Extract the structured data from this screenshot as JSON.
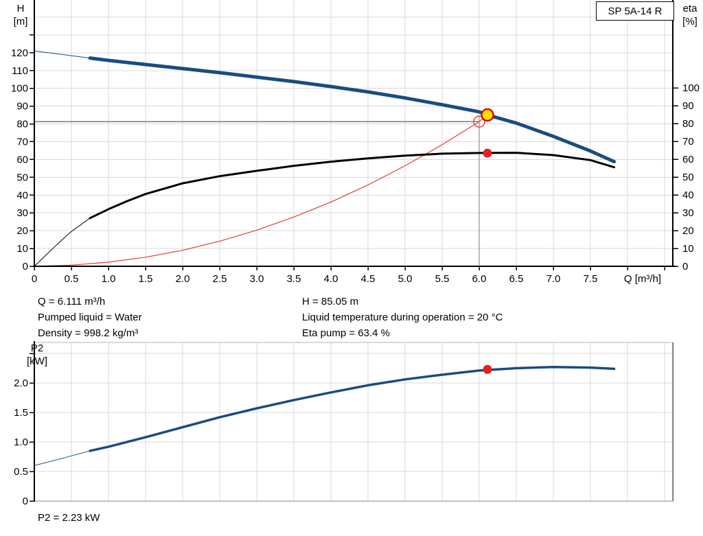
{
  "pump_name": "SP 5A-14 R",
  "info_panel": {
    "left": [
      "Q = 6.111 m³/h",
      "Pumped liquid = Water",
      "Density = 998.2 kg/m³"
    ],
    "right": [
      "H = 85.05 m",
      "Liquid temperature during operation = 20 °C",
      "Eta pump = 63.4 %"
    ]
  },
  "colors": {
    "head_curve": "#1a4c80",
    "eta_curve": "#000000",
    "system_curve": "#e23b33",
    "marker_yellow": "#ffdf00",
    "marker_red": "#ec1c24",
    "grid": "#d9d9d9",
    "crosshair": "#787878",
    "axis": "#000000",
    "border_gray": "#b0b0b0",
    "border_right_gray": "#555555"
  },
  "chart_data": [
    {
      "type": "line",
      "title": "SP 5A-14 R",
      "xlabel": "Q [m³/h]",
      "ylabel_left": [
        "H",
        "[m]"
      ],
      "ylabel_right": [
        "eta",
        "[%]"
      ],
      "xlim": [
        0,
        8.6
      ],
      "x_ticks": [
        0,
        0.5,
        1,
        1.5,
        2,
        2.5,
        3,
        3.5,
        4,
        4.5,
        5,
        5.5,
        6,
        6.5,
        7,
        7.5
      ],
      "x_tick_labels": [
        "0",
        "0.5",
        "1.0",
        "1.5",
        "2.0",
        "2.5",
        "3.0",
        "3.5",
        "4.0",
        "4.5",
        "5.0",
        "5.5",
        "6.0",
        "6.5",
        "7.0",
        "7.5"
      ],
      "ylim_left": [
        0,
        143
      ],
      "y_ticks_left": [
        0,
        10,
        20,
        30,
        40,
        50,
        60,
        70,
        80,
        90,
        100,
        110,
        120
      ],
      "ylim_right": [
        0,
        100
      ],
      "y_ticks_right": [
        0,
        10,
        20,
        30,
        40,
        50,
        60,
        70,
        80,
        90,
        100
      ],
      "grid": true,
      "series": [
        {
          "name": "head-curve",
          "axis": "left",
          "color_key": "head_curve",
          "width": 5,
          "thin_until": 0.75,
          "points": [
            [
              0,
              121
            ],
            [
              0.4,
              118.9
            ],
            [
              0.75,
              117
            ],
            [
              1,
              115.7
            ],
            [
              1.5,
              113.4
            ],
            [
              2,
              111.1
            ],
            [
              2.5,
              108.8
            ],
            [
              3,
              106.3
            ],
            [
              3.5,
              103.8
            ],
            [
              4,
              101
            ],
            [
              4.5,
              98
            ],
            [
              5,
              94.6
            ],
            [
              5.5,
              90.8
            ],
            [
              6,
              86.8
            ],
            [
              6.11,
              85.05
            ],
            [
              6.5,
              80.5
            ],
            [
              7,
              73
            ],
            [
              7.5,
              64.8
            ],
            [
              7.82,
              58.8
            ]
          ]
        },
        {
          "name": "eta-curve",
          "axis": "right",
          "color_key": "eta_curve",
          "width": 3,
          "thin_until": 0.75,
          "points": [
            [
              0,
              0
            ],
            [
              0.15,
              6
            ],
            [
              0.3,
              12
            ],
            [
              0.5,
              19.5
            ],
            [
              0.75,
              27
            ],
            [
              1,
              32
            ],
            [
              1.25,
              36.5
            ],
            [
              1.5,
              40.5
            ],
            [
              2,
              46.5
            ],
            [
              2.5,
              50.5
            ],
            [
              3,
              53.5
            ],
            [
              3.5,
              56.3
            ],
            [
              4,
              58.6
            ],
            [
              4.5,
              60.5
            ],
            [
              5,
              62
            ],
            [
              5.5,
              63.1
            ],
            [
              6,
              63.5
            ],
            [
              6.5,
              63.6
            ],
            [
              7,
              62.3
            ],
            [
              7.5,
              59.5
            ],
            [
              7.82,
              55.5
            ]
          ]
        },
        {
          "name": "system-curve",
          "axis": "left",
          "color_key": "system_curve",
          "width": 1.2,
          "thin_until": null,
          "points": [
            [
              0,
              0
            ],
            [
              0.5,
              0.6
            ],
            [
              1,
              2.3
            ],
            [
              1.5,
              5.1
            ],
            [
              2,
              9
            ],
            [
              2.5,
              14.1
            ],
            [
              3,
              20.3
            ],
            [
              3.5,
              27.7
            ],
            [
              4,
              36.1
            ],
            [
              4.5,
              45.7
            ],
            [
              5,
              56.5
            ],
            [
              5.5,
              68.3
            ],
            [
              6,
              81.3
            ],
            [
              6.11,
              85.1
            ]
          ]
        }
      ],
      "markers": [
        {
          "name": "duty-point-head",
          "style": "yellow-ring",
          "axis": "left",
          "q": 6.111,
          "value": 85.05
        },
        {
          "name": "requested-duty",
          "style": "open-ring",
          "axis": "left",
          "q": 6.0,
          "value": 81.3
        },
        {
          "name": "duty-point-eta",
          "style": "red-dot",
          "axis": "right",
          "q": 6.111,
          "value": 63.4
        }
      ],
      "crosshair": {
        "q": 6.0,
        "h": 81.3
      }
    },
    {
      "type": "line",
      "title": "",
      "xlabel": "",
      "ylabel_left": [
        "P2",
        "[kW]"
      ],
      "xlim": [
        0,
        8.6
      ],
      "ylim_left": [
        0,
        2.75
      ],
      "y_ticks_left": [
        0,
        0.5,
        1,
        1.5,
        2
      ],
      "y_tick_labels_left": [
        "0",
        "0.5",
        "1.0",
        "1.5",
        "2.0"
      ],
      "grid": true,
      "series": [
        {
          "name": "p2-curve",
          "axis": "left",
          "color_key": "head_curve",
          "width": 3.5,
          "thin_until": 0.75,
          "points": [
            [
              0,
              0.6
            ],
            [
              0.4,
              0.73
            ],
            [
              0.75,
              0.85
            ],
            [
              1,
              0.92
            ],
            [
              1.5,
              1.08
            ],
            [
              2,
              1.25
            ],
            [
              2.5,
              1.42
            ],
            [
              3,
              1.57
            ],
            [
              3.5,
              1.71
            ],
            [
              4,
              1.84
            ],
            [
              4.5,
              1.96
            ],
            [
              5,
              2.06
            ],
            [
              5.5,
              2.14
            ],
            [
              6,
              2.21
            ],
            [
              6.5,
              2.25
            ],
            [
              7,
              2.27
            ],
            [
              7.5,
              2.26
            ],
            [
              7.82,
              2.24
            ]
          ]
        }
      ],
      "markers": [
        {
          "name": "duty-point-p2",
          "style": "red-dot",
          "axis": "left",
          "q": 6.111,
          "value": 2.23
        }
      ],
      "annotation": "P2 = 2.23 kW"
    }
  ]
}
